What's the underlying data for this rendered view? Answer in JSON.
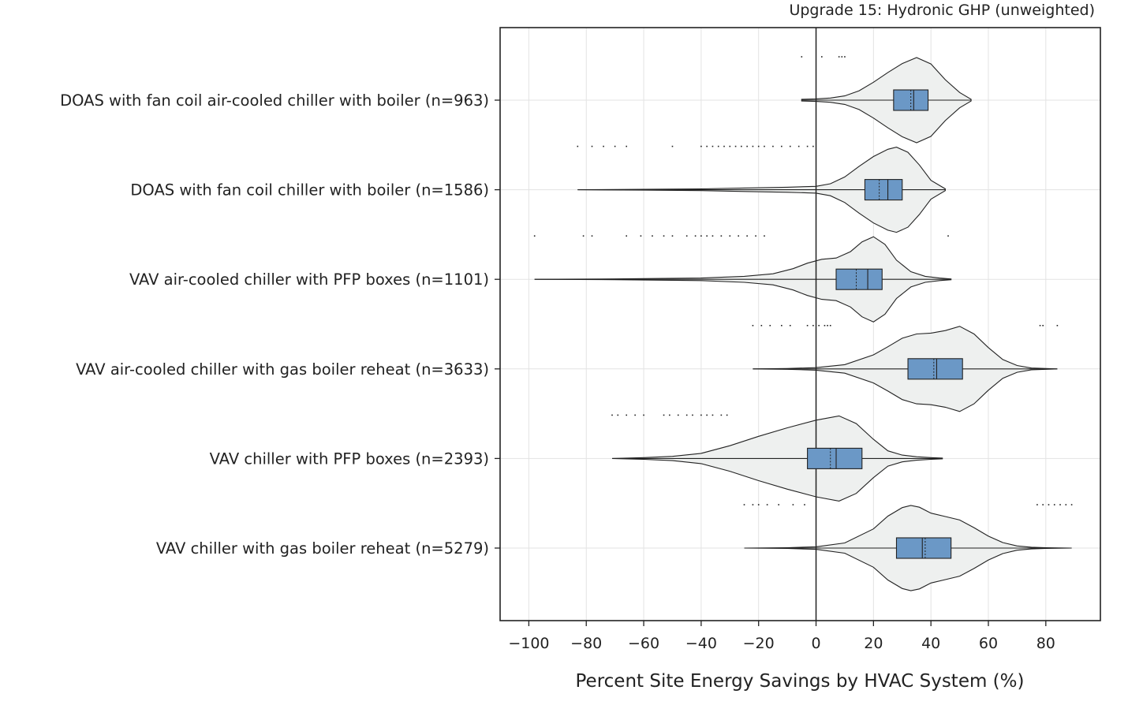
{
  "chart_data": {
    "type": "violin",
    "title": "Upgrade 15: Hydronic GHP (unweighted)",
    "xlabel": "Percent Site Energy Savings by HVAC System (%)",
    "ylabel": "",
    "xlim": [
      -110,
      99
    ],
    "x_ticks": [
      -100,
      -80,
      -60,
      -40,
      -20,
      0,
      20,
      40,
      60,
      80
    ],
    "x_tick_labels": [
      "−100",
      "−80",
      "−60",
      "−40",
      "−20",
      "0",
      "20",
      "40",
      "60",
      "80"
    ],
    "grid": true,
    "reference_line_x": 0,
    "colors": {
      "violin_fill": "#eef0ef",
      "violin_edge": "#222222",
      "box_fill": "#6b98c6",
      "box_edge": "#222222",
      "grid": "#e3e3e3"
    },
    "categories": [
      {
        "label": "DOAS with fan coil air-cooled chiller with boiler (n=963)",
        "whisker": [
          -5,
          54
        ],
        "box": [
          27,
          39
        ],
        "median": 34,
        "mean": 33,
        "density_profile": [
          [
            -5,
            0.02
          ],
          [
            0,
            0.03
          ],
          [
            5,
            0.05
          ],
          [
            10,
            0.1
          ],
          [
            15,
            0.22
          ],
          [
            20,
            0.42
          ],
          [
            25,
            0.65
          ],
          [
            30,
            0.86
          ],
          [
            35,
            1.0
          ],
          [
            40,
            0.85
          ],
          [
            45,
            0.48
          ],
          [
            50,
            0.18
          ],
          [
            54,
            0.02
          ]
        ],
        "outliers": [
          -5,
          2,
          8,
          9,
          10
        ]
      },
      {
        "label": "DOAS with fan coil chiller with boiler (n=1586)",
        "whisker": [
          -83,
          45
        ],
        "box": [
          17,
          30
        ],
        "median": 25,
        "mean": 22,
        "density_profile": [
          [
            -83,
            0.0
          ],
          [
            -60,
            0.01
          ],
          [
            -40,
            0.02
          ],
          [
            -25,
            0.04
          ],
          [
            -10,
            0.06
          ],
          [
            0,
            0.08
          ],
          [
            5,
            0.14
          ],
          [
            10,
            0.3
          ],
          [
            15,
            0.55
          ],
          [
            20,
            0.78
          ],
          [
            25,
            0.95
          ],
          [
            28,
            1.0
          ],
          [
            32,
            0.88
          ],
          [
            36,
            0.58
          ],
          [
            40,
            0.22
          ],
          [
            45,
            0.02
          ]
        ],
        "outliers": [
          -83,
          -78,
          -74,
          -70,
          -66,
          -50,
          -40,
          -38,
          -36,
          -34,
          -32,
          -30,
          -28,
          -26,
          -24,
          -22,
          -20,
          -18,
          -15,
          -12,
          -9,
          -6,
          -3,
          -1
        ]
      },
      {
        "label": "VAV air-cooled chiller with PFP boxes (n=1101)",
        "whisker": [
          -98,
          47
        ],
        "box": [
          7,
          23
        ],
        "median": 18,
        "mean": 14,
        "density_profile": [
          [
            -98,
            0.0
          ],
          [
            -70,
            0.01
          ],
          [
            -40,
            0.03
          ],
          [
            -25,
            0.07
          ],
          [
            -15,
            0.13
          ],
          [
            -8,
            0.25
          ],
          [
            -3,
            0.38
          ],
          [
            2,
            0.47
          ],
          [
            7,
            0.5
          ],
          [
            12,
            0.65
          ],
          [
            16,
            0.88
          ],
          [
            20,
            1.0
          ],
          [
            24,
            0.82
          ],
          [
            28,
            0.45
          ],
          [
            33,
            0.18
          ],
          [
            38,
            0.07
          ],
          [
            43,
            0.03
          ],
          [
            47,
            0.01
          ]
        ],
        "outliers": [
          -98,
          -81,
          -78,
          -66,
          -61,
          -57,
          -53,
          -50,
          -45,
          -42,
          -40,
          -38,
          -36,
          -33,
          -30,
          -27,
          -24,
          -21,
          -18,
          46
        ]
      },
      {
        "label": "VAV air-cooled chiller with gas boiler reheat (n=3633)",
        "whisker": [
          -22,
          84
        ],
        "box": [
          32,
          51
        ],
        "median": 42,
        "mean": 41,
        "density_profile": [
          [
            -22,
            0.0
          ],
          [
            -10,
            0.01
          ],
          [
            0,
            0.03
          ],
          [
            10,
            0.1
          ],
          [
            20,
            0.33
          ],
          [
            25,
            0.52
          ],
          [
            30,
            0.72
          ],
          [
            35,
            0.82
          ],
          [
            40,
            0.84
          ],
          [
            45,
            0.9
          ],
          [
            50,
            1.0
          ],
          [
            55,
            0.82
          ],
          [
            60,
            0.5
          ],
          [
            65,
            0.22
          ],
          [
            70,
            0.08
          ],
          [
            75,
            0.02
          ],
          [
            80,
            0.01
          ],
          [
            84,
            0.0
          ]
        ],
        "outliers": [
          -22,
          -19,
          -16,
          -12,
          -9,
          -3,
          -1,
          1,
          3,
          4,
          5,
          78,
          79,
          84
        ]
      },
      {
        "label": "VAV chiller with PFP boxes (n=2393)",
        "whisker": [
          -71,
          44
        ],
        "box": [
          -3,
          16
        ],
        "median": 7,
        "mean": 5,
        "density_profile": [
          [
            -71,
            0.0
          ],
          [
            -60,
            0.02
          ],
          [
            -50,
            0.05
          ],
          [
            -40,
            0.12
          ],
          [
            -30,
            0.3
          ],
          [
            -20,
            0.52
          ],
          [
            -10,
            0.72
          ],
          [
            0,
            0.9
          ],
          [
            8,
            1.0
          ],
          [
            14,
            0.82
          ],
          [
            20,
            0.45
          ],
          [
            25,
            0.18
          ],
          [
            30,
            0.08
          ],
          [
            35,
            0.04
          ],
          [
            40,
            0.02
          ],
          [
            44,
            0.01
          ]
        ],
        "outliers": [
          -71,
          -69,
          -66,
          -63,
          -60,
          -53,
          -51,
          -48,
          -45,
          -43,
          -40,
          -38,
          -36,
          -33,
          -31
        ]
      },
      {
        "label": "VAV chiller with gas boiler reheat (n=5279)",
        "whisker": [
          -25,
          89
        ],
        "box": [
          28,
          47
        ],
        "median": 37,
        "mean": 38,
        "density_profile": [
          [
            -25,
            0.0
          ],
          [
            -10,
            0.01
          ],
          [
            0,
            0.03
          ],
          [
            10,
            0.12
          ],
          [
            20,
            0.45
          ],
          [
            25,
            0.75
          ],
          [
            30,
            0.95
          ],
          [
            33,
            1.0
          ],
          [
            36,
            0.96
          ],
          [
            40,
            0.82
          ],
          [
            45,
            0.74
          ],
          [
            50,
            0.66
          ],
          [
            55,
            0.48
          ],
          [
            60,
            0.28
          ],
          [
            65,
            0.13
          ],
          [
            70,
            0.05
          ],
          [
            75,
            0.02
          ],
          [
            80,
            0.01
          ],
          [
            89,
            0.0
          ]
        ],
        "outliers": [
          -25,
          -22,
          -20,
          -17,
          -13,
          -8,
          -4,
          77,
          79,
          81,
          83,
          85,
          87,
          89
        ]
      }
    ]
  }
}
